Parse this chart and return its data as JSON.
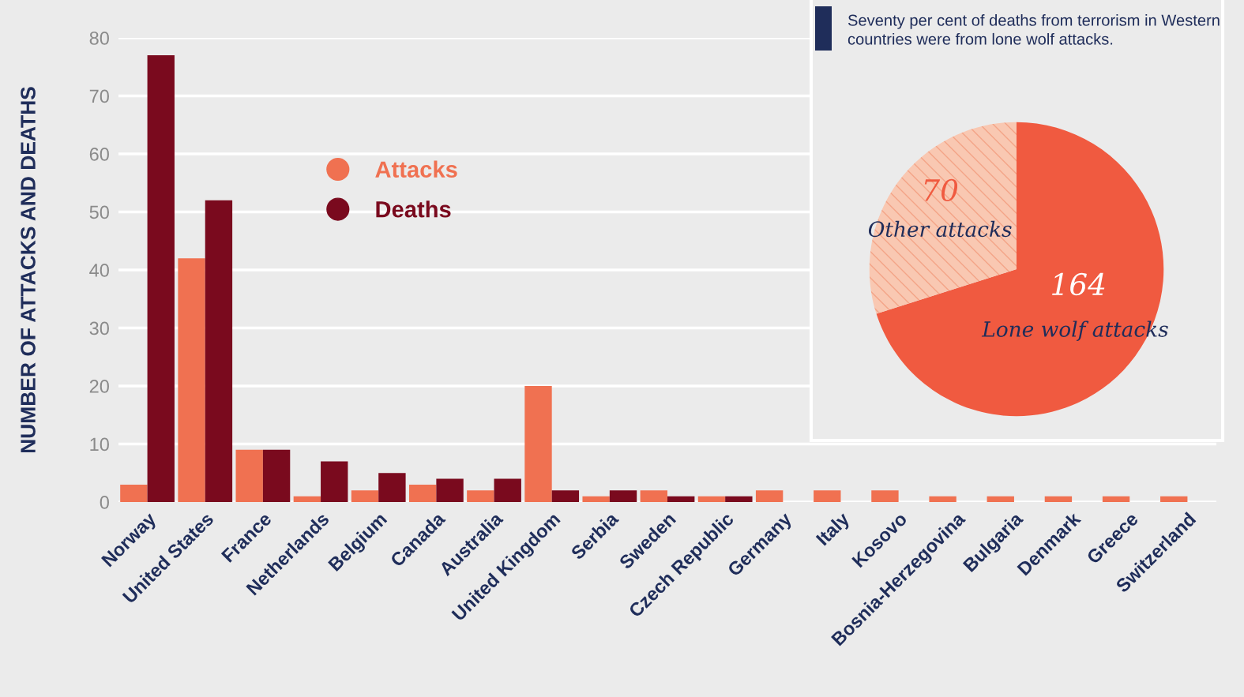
{
  "chart_data": [
    {
      "type": "bar",
      "ylabel": "NUMBER OF ATTACKS AND DEATHS",
      "categories": [
        "Norway",
        "United States",
        "France",
        "Netherlands",
        "Belgium",
        "Canada",
        "Australia",
        "United Kingdom",
        "Serbia",
        "Sweden",
        "Czech Republic",
        "Germany",
        "Italy",
        "Kosovo",
        "Bosnia-Herzegovina",
        "Bulgaria",
        "Denmark",
        "Greece",
        "Switzerland"
      ],
      "series": [
        {
          "name": "Attacks",
          "color": "#f07151",
          "values": [
            3,
            42,
            9,
            1,
            2,
            3,
            2,
            20,
            1,
            2,
            1,
            2,
            2,
            2,
            1,
            1,
            1,
            1,
            1
          ]
        },
        {
          "name": "Deaths",
          "color": "#7a0a1e",
          "values": [
            77,
            52,
            9,
            7,
            5,
            4,
            4,
            2,
            2,
            1,
            1,
            0,
            0,
            0,
            0,
            0,
            0,
            0,
            0
          ]
        }
      ],
      "ylim": [
        0,
        80
      ],
      "yticks": [
        0,
        10,
        20,
        30,
        40,
        50,
        60,
        70,
        80
      ],
      "grid": "y",
      "legend": "top left"
    },
    {
      "type": "pie",
      "categories": [
        "Lone wolf attacks",
        "Other attacks"
      ],
      "values": [
        164,
        70
      ],
      "colors": [
        "#f05a40",
        "#f9c8b2"
      ],
      "data_labels": true,
      "annotations": [
        "Seventy per cent of deaths from terrorism in Western countries were from lone wolf attacks."
      ]
    }
  ]
}
